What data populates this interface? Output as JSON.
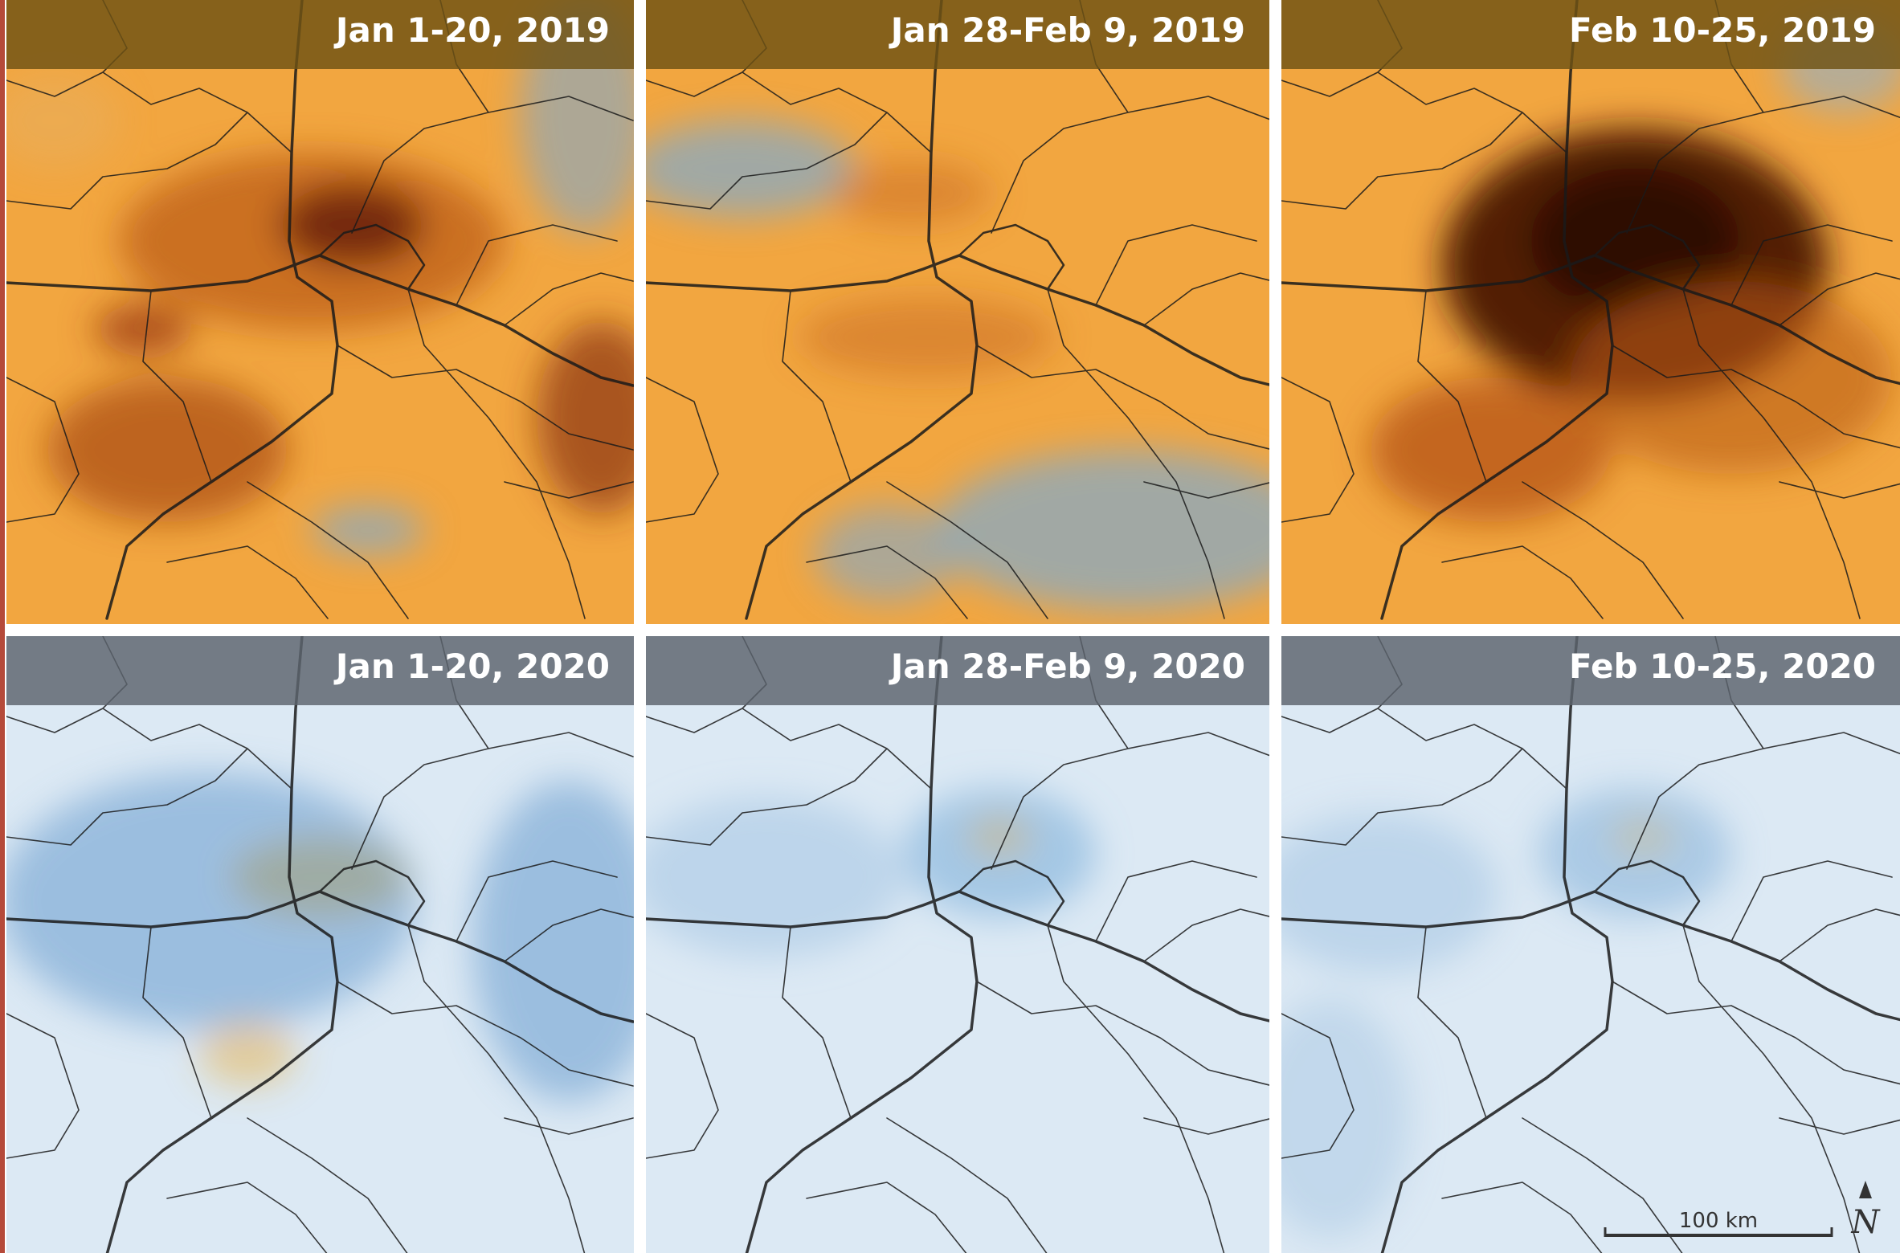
{
  "panels": [
    {
      "label": "Jan 1-20, 2019"
    },
    {
      "label": "Jan 28-Feb 9, 2019"
    },
    {
      "label": "Feb 10-25, 2019"
    },
    {
      "label": "Jan 1-20, 2020"
    },
    {
      "label": "Jan 28-Feb 9, 2020"
    },
    {
      "label": "Feb 10-25, 2020"
    }
  ],
  "scale_bar": {
    "label": "100 km"
  },
  "north_arrow": {
    "label": "N"
  }
}
